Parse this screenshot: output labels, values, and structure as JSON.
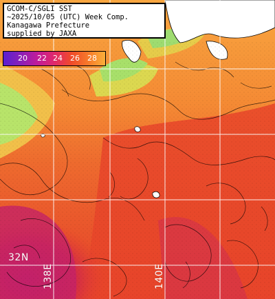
{
  "title": {
    "line1": "GCOM-C/SGLI SST",
    "line2": "~2025/10/05 (UTC) Week Comp.",
    "line3": "Kanagawa Prefecture",
    "line4": "supplied by JAXA"
  },
  "legend": {
    "ticks": [
      "20",
      "22",
      "24",
      "26",
      "28"
    ],
    "colors": [
      "#5a1fd0",
      "#8a1fb8",
      "#c01b9a",
      "#e0286b",
      "#f04a2a",
      "#f77a2a",
      "#fbb03a"
    ]
  },
  "grid": {
    "lat_label": "32N",
    "lon_labels": [
      "138E",
      "140E"
    ]
  },
  "colors": {
    "land": "#ffffff",
    "grid": "#ffffff",
    "contour": "#000000",
    "sst_cool": "#c8f060",
    "sst_mid": "#f59a3a",
    "sst_warm": "#e8452a",
    "sst_hot": "#c41e5e"
  }
}
